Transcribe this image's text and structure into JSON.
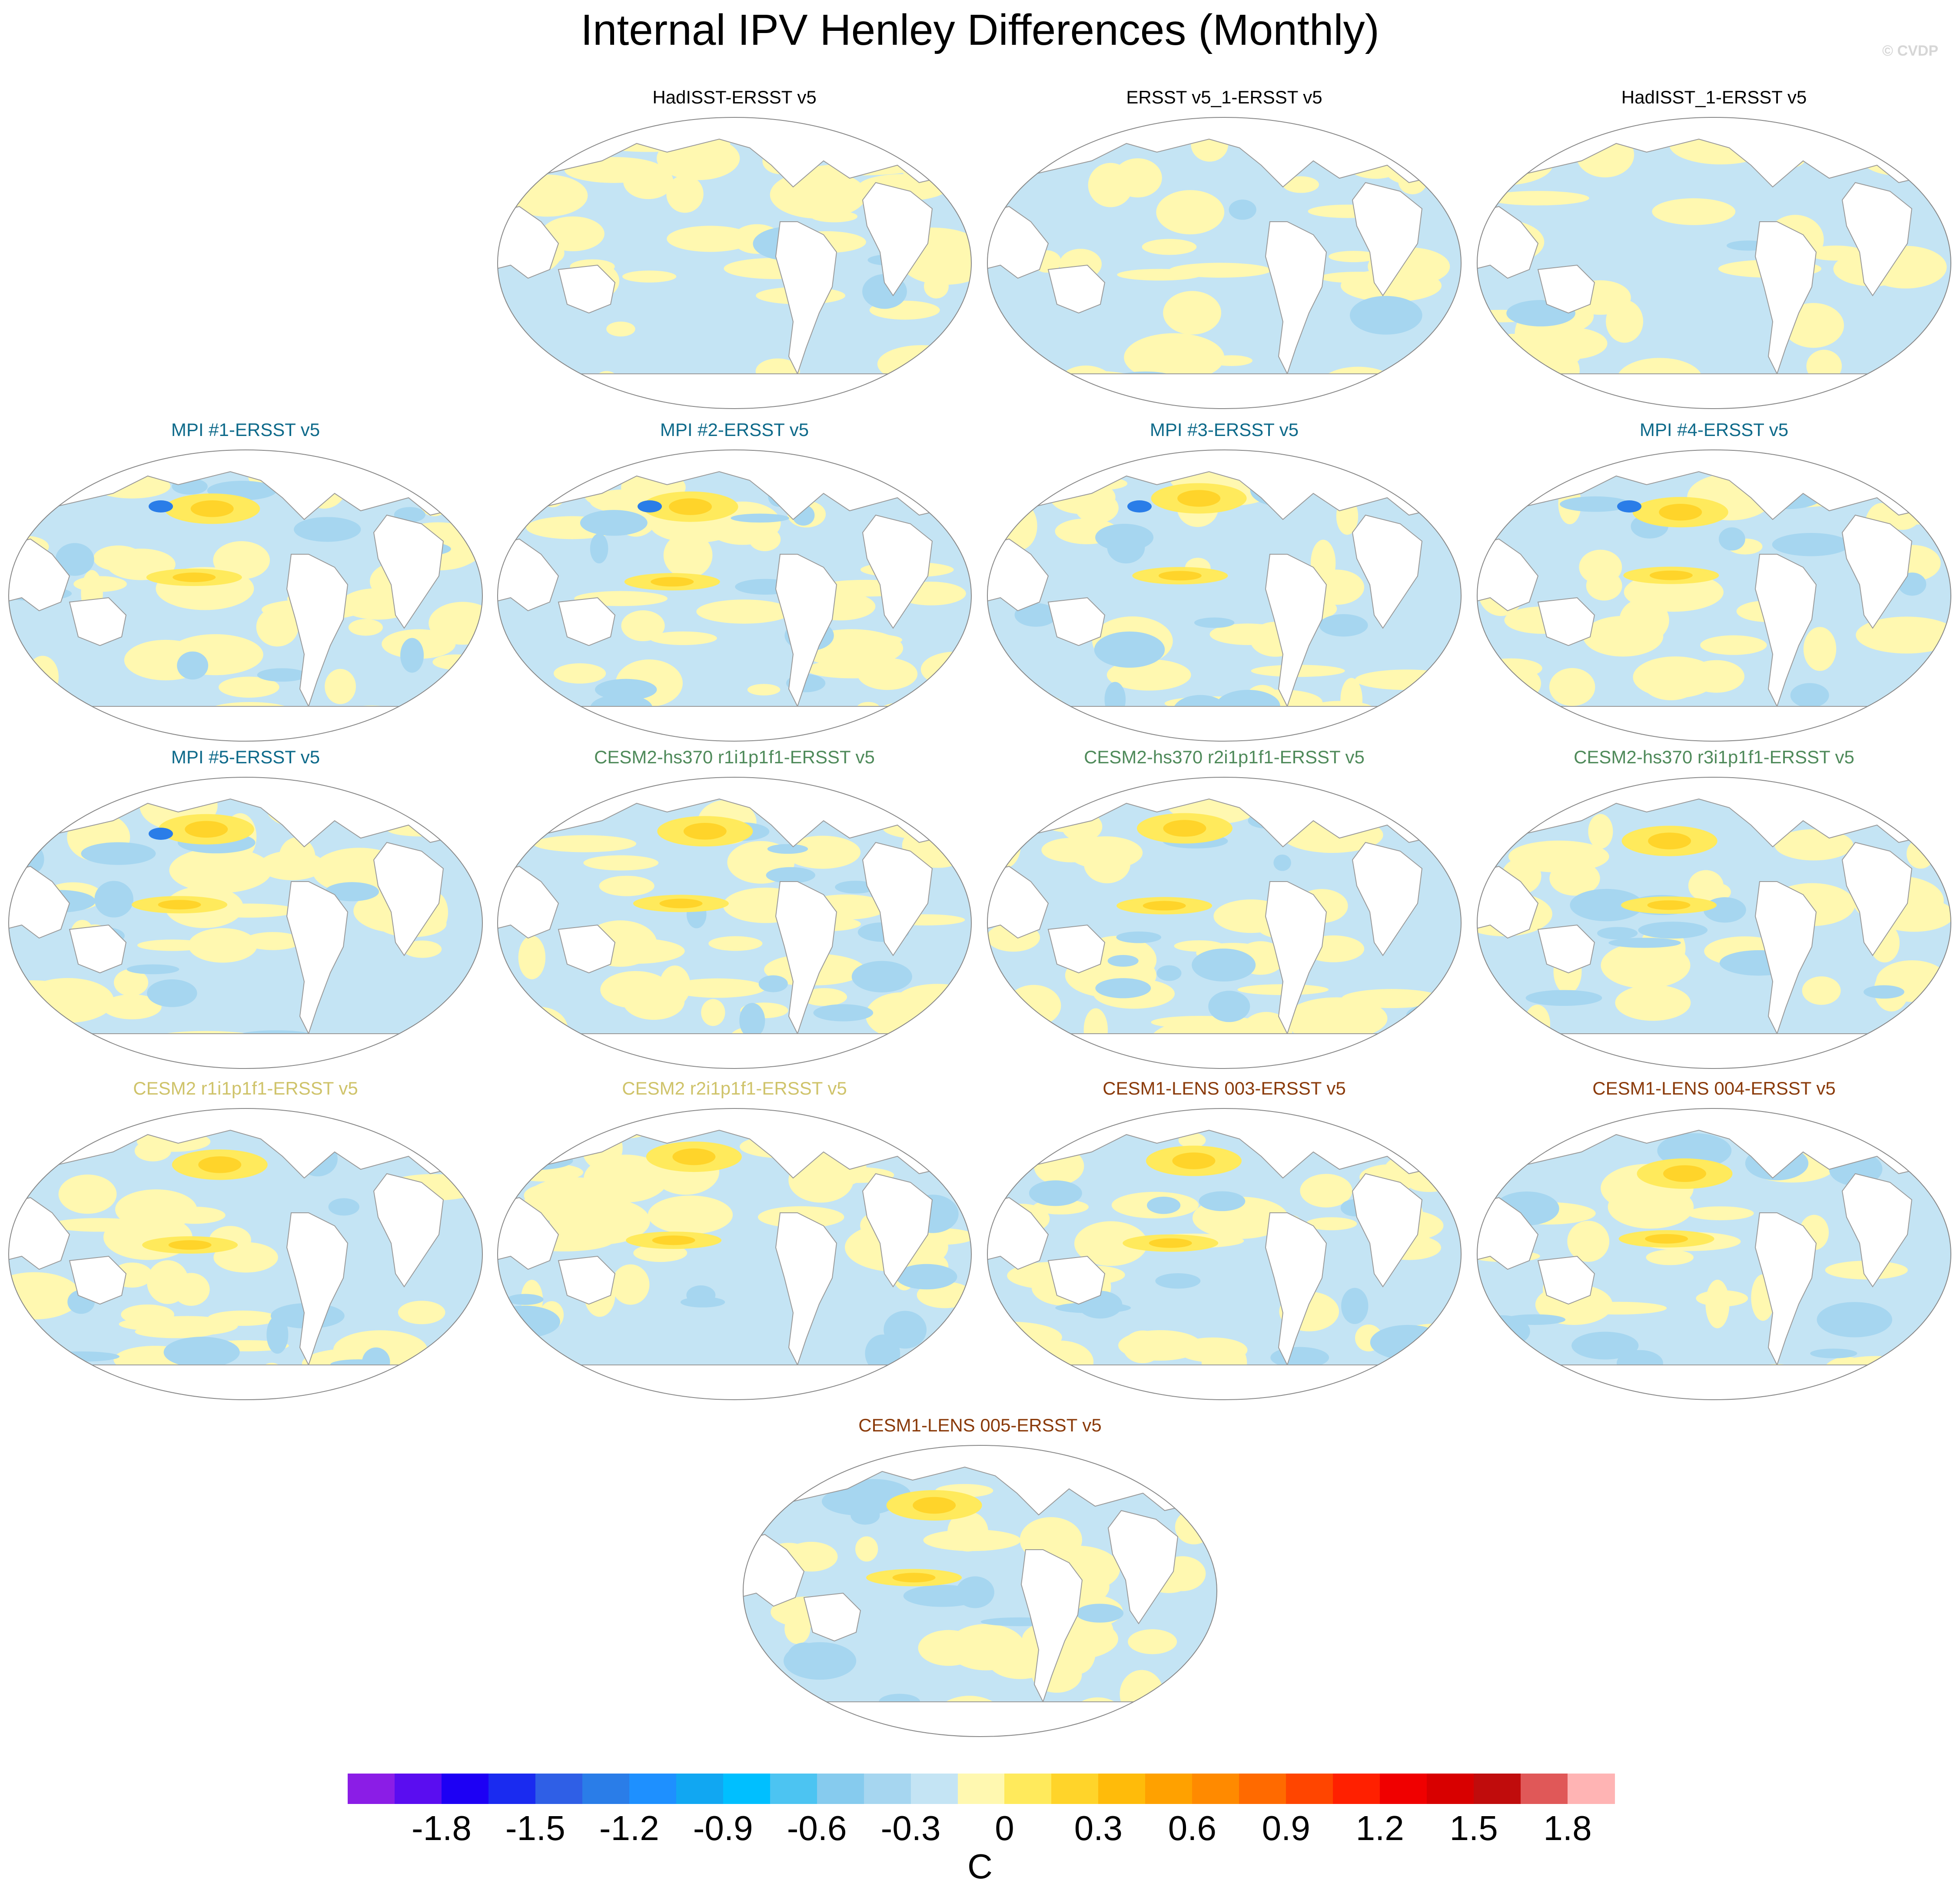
{
  "title": "Internal IPV Henley Differences (Monthly)",
  "credit": "© CVDP",
  "panels": [
    {
      "title": "HadISST-ERSST v5",
      "color": "#000000"
    },
    {
      "title": "ERSST v5_1-ERSST v5",
      "color": "#000000"
    },
    {
      "title": "HadISST_1-ERSST v5",
      "color": "#000000"
    },
    {
      "title": "MPI #1-ERSST v5",
      "color": "#0e6a8a"
    },
    {
      "title": "MPI #2-ERSST v5",
      "color": "#0e6a8a"
    },
    {
      "title": "MPI #3-ERSST v5",
      "color": "#0e6a8a"
    },
    {
      "title": "MPI #4-ERSST v5",
      "color": "#0e6a8a"
    },
    {
      "title": "MPI #5-ERSST v5",
      "color": "#0e6a8a"
    },
    {
      "title": "CESM2-hs370 r1i1p1f1-ERSST v5",
      "color": "#4f8a5a"
    },
    {
      "title": "CESM2-hs370 r2i1p1f1-ERSST v5",
      "color": "#4f8a5a"
    },
    {
      "title": "CESM2-hs370 r3i1p1f1-ERSST v5",
      "color": "#4f8a5a"
    },
    {
      "title": "CESM2 r1i1p1f1-ERSST v5",
      "color": "#cfc36a"
    },
    {
      "title": "CESM2 r2i1p1f1-ERSST v5",
      "color": "#cfc36a"
    },
    {
      "title": "CESM1-LENS 003-ERSST v5",
      "color": "#8a3a0a"
    },
    {
      "title": "CESM1-LENS 004-ERSST v5",
      "color": "#8a3a0a"
    },
    {
      "title": "CESM1-LENS 005-ERSST v5",
      "color": "#8a3a0a"
    }
  ],
  "colorbar": {
    "colors": [
      "#8b1de6",
      "#5a0df0",
      "#1d00f4",
      "#1a2bf0",
      "#2f5fe6",
      "#2a7de8",
      "#1e90ff",
      "#11a7f2",
      "#00bfff",
      "#4cc4f2",
      "#86cbee",
      "#a6d6f0",
      "#c4e4f4",
      "#fff8b0",
      "#ffea5c",
      "#ffd42a",
      "#ffbb0a",
      "#ffa100",
      "#ff8a00",
      "#ff6a00",
      "#ff4500",
      "#ff2000",
      "#f00000",
      "#d80000",
      "#c00c0c",
      "#e05858",
      "#ffb4b4"
    ],
    "tick_labels": [
      "-1.8",
      "-1.5",
      "-1.2",
      "-0.9",
      "-0.6",
      "-0.3",
      "0",
      "0.3",
      "0.6",
      "0.9",
      "1.2",
      "1.5",
      "1.8"
    ],
    "unit": "C"
  }
}
